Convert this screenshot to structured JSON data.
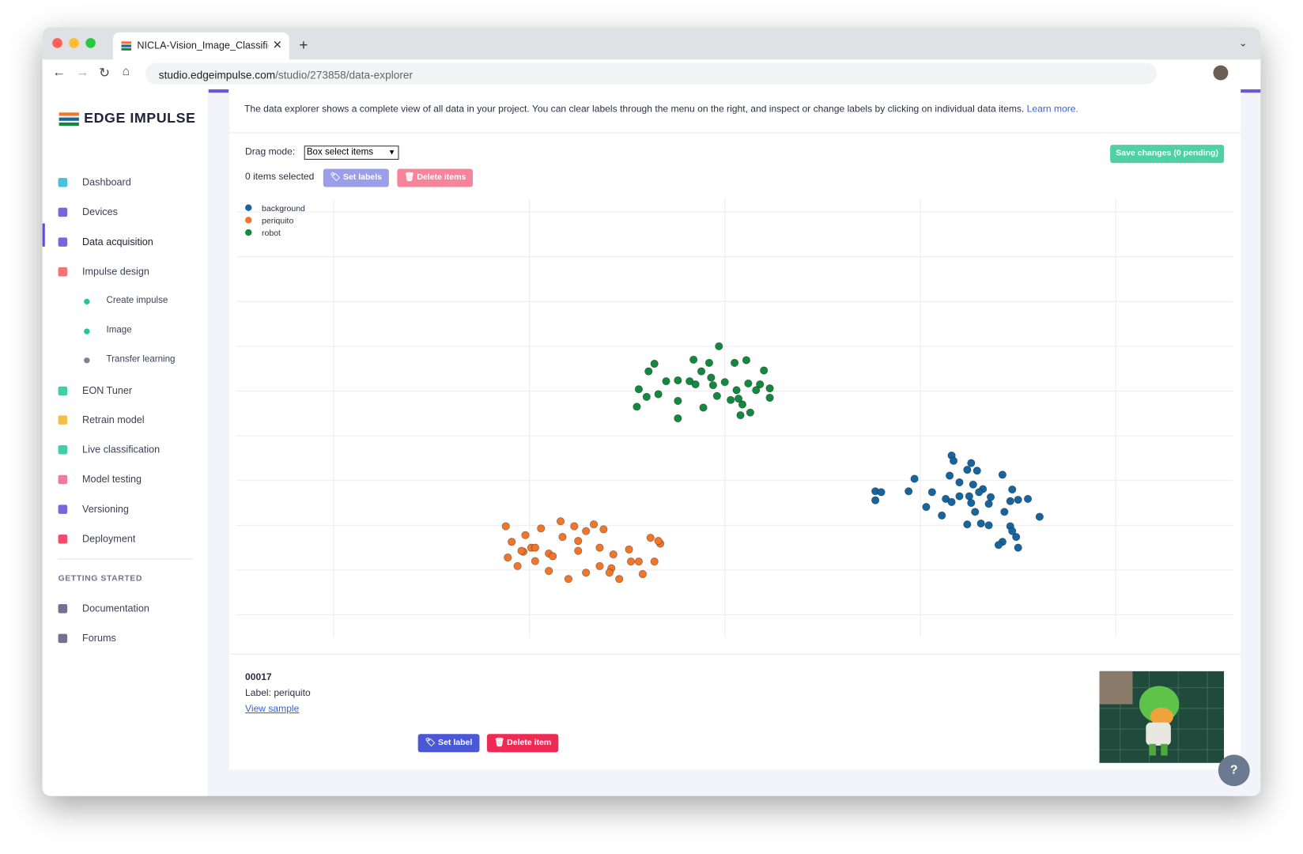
{
  "browser": {
    "tab_title": "NICLA-Vision_Image_Classific",
    "url_domain": "studio.edgeimpulse.com",
    "url_path": "/studio/273858/data-explorer"
  },
  "sidebar": {
    "brand": "EDGE IMPULSE",
    "nav": [
      "Dashboard",
      "Devices",
      "Data acquisition",
      "Impulse design",
      "Create impulse",
      "Image",
      "Transfer learning",
      "EON Tuner",
      "Retrain model",
      "Live classification",
      "Model testing",
      "Versioning",
      "Deployment"
    ],
    "section": "GETTING STARTED",
    "links": [
      "Documentation",
      "Forums"
    ]
  },
  "main": {
    "intro": "The data explorer shows a complete view of all data in your project. You can clear labels through the menu on the right, and inspect or change labels by clicking on individual data items.",
    "learn_more": "Learn more.",
    "drag_mode_label": "Drag mode:",
    "drag_mode_option": "Box select items",
    "save_button": "Save changes (0 pending)",
    "selected": "0 items selected",
    "set_labels": "Set labels",
    "delete_items": "Delete items"
  },
  "detail": {
    "id": "00017",
    "label": "Label: periquito",
    "view_sample": "View sample",
    "set_label": "Set label",
    "delete_item": "Delete item"
  },
  "chart_data": {
    "type": "scatter",
    "xlim": [
      -0.5,
      4.6
    ],
    "ylim": [
      -0.5,
      9.3
    ],
    "xticks": [
      0,
      1,
      2,
      3,
      4
    ],
    "yticks": [
      0,
      1,
      2,
      3,
      4,
      5,
      6,
      7,
      8,
      9
    ],
    "grid": true,
    "legend": "top-left",
    "series": [
      {
        "name": "background",
        "color": "#17659e",
        "x": [
          3.16,
          3.17,
          2.97,
          3.26,
          3.24,
          3.29,
          3.42,
          3.15,
          3.2,
          3.27,
          3.32,
          2.94,
          3.06,
          2.77,
          2.8,
          3.13,
          3.2,
          3.25,
          3.3,
          3.36,
          3.47,
          2.77,
          3.03,
          3.16,
          3.26,
          3.35,
          3.46,
          3.5,
          3.55,
          3.11,
          3.28,
          3.43,
          3.61,
          3.24,
          3.31,
          3.35,
          3.46,
          3.49,
          3.42,
          3.5,
          3.4,
          3.47
        ],
        "y": [
          3.56,
          3.44,
          3.04,
          3.39,
          3.24,
          3.22,
          3.13,
          3.11,
          2.96,
          2.91,
          2.81,
          2.76,
          2.74,
          2.76,
          2.74,
          2.59,
          2.65,
          2.65,
          2.74,
          2.63,
          2.8,
          2.56,
          2.41,
          2.52,
          2.5,
          2.48,
          2.54,
          2.57,
          2.59,
          2.22,
          2.3,
          2.3,
          2.19,
          2.02,
          2.04,
          2.0,
          1.98,
          1.74,
          1.63,
          1.5,
          1.56,
          1.87
        ]
      },
      {
        "name": "periquito",
        "color": "#f0762b",
        "x": [
          0.88,
          0.98,
          1.06,
          1.16,
          1.23,
          1.33,
          1.38,
          0.91,
          1.01,
          1.1,
          1.17,
          1.25,
          1.29,
          1.36,
          1.43,
          1.51,
          1.62,
          1.67,
          0.89,
          0.97,
          1.03,
          1.12,
          1.25,
          1.36,
          1.42,
          1.52,
          1.56,
          1.64,
          0.94,
          1.03,
          1.1,
          1.2,
          1.29,
          1.41,
          1.46,
          1.58,
          1.66,
          0.96
        ],
        "y": [
          1.98,
          1.78,
          1.93,
          2.09,
          1.98,
          2.02,
          1.91,
          1.63,
          1.5,
          1.37,
          1.74,
          1.65,
          1.87,
          1.5,
          1.35,
          1.46,
          1.72,
          1.59,
          1.28,
          1.41,
          1.5,
          1.31,
          1.43,
          1.09,
          1.04,
          1.19,
          1.19,
          1.19,
          1.09,
          1.2,
          0.98,
          0.8,
          0.94,
          0.94,
          0.8,
          0.91,
          1.65,
          1.43
        ]
      },
      {
        "name": "robot",
        "color": "#14883e",
        "x": [
          1.97,
          1.64,
          1.61,
          1.84,
          1.92,
          2.05,
          2.11,
          2.2,
          1.56,
          1.7,
          1.76,
          1.82,
          1.88,
          1.94,
          2.0,
          2.06,
          2.12,
          2.18,
          2.23,
          1.6,
          1.66,
          1.76,
          1.89,
          1.96,
          2.03,
          2.09,
          2.16,
          2.23,
          1.55,
          1.76,
          2.08,
          2.13,
          1.85,
          1.93,
          2.07
        ],
        "y": [
          6.0,
          5.61,
          5.44,
          5.7,
          5.63,
          5.63,
          5.69,
          5.46,
          5.04,
          5.22,
          5.24,
          5.22,
          5.44,
          5.13,
          5.2,
          5.02,
          5.17,
          5.15,
          5.06,
          4.87,
          4.93,
          4.78,
          4.63,
          4.89,
          4.8,
          4.7,
          5.02,
          4.85,
          4.65,
          4.39,
          4.46,
          4.52,
          5.15,
          5.3,
          4.83
        ]
      }
    ]
  }
}
